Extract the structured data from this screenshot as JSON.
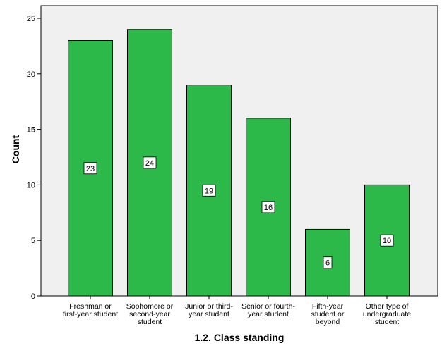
{
  "chart_data": {
    "type": "bar",
    "xlabel": "1.2. Class standing",
    "ylabel": "Count",
    "ylim": [
      0,
      25
    ],
    "yticks": [
      0,
      5,
      10,
      15,
      20,
      25
    ],
    "categories": [
      [
        "Freshman or",
        "first-year student"
      ],
      [
        "Sophomore or",
        "second-year",
        "student"
      ],
      [
        "Junior or third-",
        "year student"
      ],
      [
        "Senior or fourth-",
        "year student"
      ],
      [
        "Fifth-year",
        "student or",
        "beyond"
      ],
      [
        "Other type of",
        "undergraduate",
        "student"
      ]
    ],
    "values": [
      23,
      24,
      19,
      16,
      6,
      10
    ],
    "grid": false,
    "legend": "none",
    "colors": {
      "bar": "#2db84a",
      "plot_background": "#f0f0f0",
      "bar_outline": "#000000"
    }
  }
}
